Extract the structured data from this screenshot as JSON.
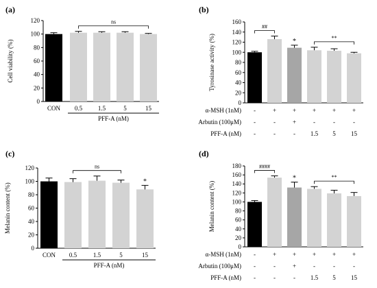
{
  "chart_data": [
    {
      "panel": "(a)",
      "type": "bar",
      "ylabel": "Cell viability (%)",
      "ylim": [
        0,
        120
      ],
      "yticks": [
        0,
        20,
        40,
        60,
        80,
        100,
        120
      ],
      "categories": [
        "CON",
        "0.5",
        "1.5",
        "5",
        "15"
      ],
      "values": [
        100,
        102,
        102,
        102,
        100
      ],
      "errors": [
        2,
        2,
        1.5,
        1.5,
        1
      ],
      "colors": [
        "#000000",
        "#d3d3d3",
        "#d3d3d3",
        "#d3d3d3",
        "#d3d3d3"
      ],
      "group_label": "PFF-A (nM)",
      "sig_labels": [
        "",
        "",
        "",
        "",
        ""
      ],
      "brackets": [
        {
          "from": 1,
          "to": 4,
          "label": "ns"
        }
      ]
    },
    {
      "panel": "(b)",
      "type": "bar",
      "ylabel": "Tyrosinase activity (%)",
      "ylim": [
        0,
        160
      ],
      "yticks": [
        0,
        20,
        40,
        60,
        80,
        100,
        120,
        140,
        160
      ],
      "categories": [
        "",
        "",
        "",
        "",
        "",
        ""
      ],
      "values": [
        100,
        126,
        109,
        104,
        103,
        98
      ],
      "errors": [
        2,
        6,
        5,
        6,
        4,
        2
      ],
      "colors": [
        "#000000",
        "#d3d3d3",
        "#a6a6a6",
        "#d3d3d3",
        "#d3d3d3",
        "#d3d3d3"
      ],
      "sig_labels": [
        "",
        "",
        "*",
        "",
        "",
        ""
      ],
      "brackets": [
        {
          "from": 0,
          "to": 1,
          "label": "##"
        },
        {
          "from": 3,
          "to": 5,
          "label": "**"
        }
      ],
      "treatments": [
        {
          "label": "α-MSH (1nM)",
          "values": [
            "-",
            "+",
            "+",
            "+",
            "+",
            "+"
          ]
        },
        {
          "label": "Arbutin (100μM)",
          "values": [
            "-",
            "-",
            "+",
            "-",
            "-",
            "-"
          ]
        },
        {
          "label": "PFF-A (nM)",
          "values": [
            "-",
            "-",
            "-",
            "1.5",
            "5",
            "15"
          ]
        }
      ]
    },
    {
      "panel": "(c)",
      "type": "bar",
      "ylabel": "Melanin content (%)",
      "ylim": [
        0,
        120
      ],
      "yticks": [
        0,
        20,
        40,
        60,
        80,
        100,
        120
      ],
      "categories": [
        "CON",
        "0.5",
        "1.5",
        "5",
        "15"
      ],
      "values": [
        100,
        99,
        101,
        98,
        88
      ],
      "errors": [
        5,
        5,
        7,
        4,
        6
      ],
      "colors": [
        "#000000",
        "#d3d3d3",
        "#d3d3d3",
        "#d3d3d3",
        "#d3d3d3"
      ],
      "group_label": "PFF-A (nM)",
      "sig_labels": [
        "",
        "",
        "",
        "",
        "*"
      ],
      "brackets": [
        {
          "from": 1,
          "to": 3,
          "label": "ns"
        }
      ]
    },
    {
      "panel": "(d)",
      "type": "bar",
      "ylabel": "Melanin content (%)",
      "ylim": [
        0,
        180
      ],
      "yticks": [
        0,
        20,
        40,
        60,
        80,
        100,
        120,
        140,
        160,
        180
      ],
      "categories": [
        "",
        "",
        "",
        "",
        "",
        ""
      ],
      "values": [
        100,
        154,
        132,
        129,
        119,
        113
      ],
      "errors": [
        3,
        4,
        12,
        5,
        7,
        8
      ],
      "colors": [
        "#000000",
        "#d3d3d3",
        "#a6a6a6",
        "#d3d3d3",
        "#d3d3d3",
        "#d3d3d3"
      ],
      "sig_labels": [
        "",
        "",
        "*",
        "",
        "",
        ""
      ],
      "brackets": [
        {
          "from": 0,
          "to": 1,
          "label": "####"
        },
        {
          "from": 3,
          "to": 5,
          "label": "**"
        }
      ],
      "treatments": [
        {
          "label": "α-MSH (1nM)",
          "values": [
            "-",
            "+",
            "+",
            "+",
            "+",
            "+"
          ]
        },
        {
          "label": "Arbutin (100μM)",
          "values": [
            "-",
            "-",
            "+",
            "-",
            "-",
            "-"
          ]
        },
        {
          "label": "PFF-A (nM)",
          "values": [
            "-",
            "-",
            "-",
            "1.5",
            "5",
            "15"
          ]
        }
      ]
    }
  ]
}
